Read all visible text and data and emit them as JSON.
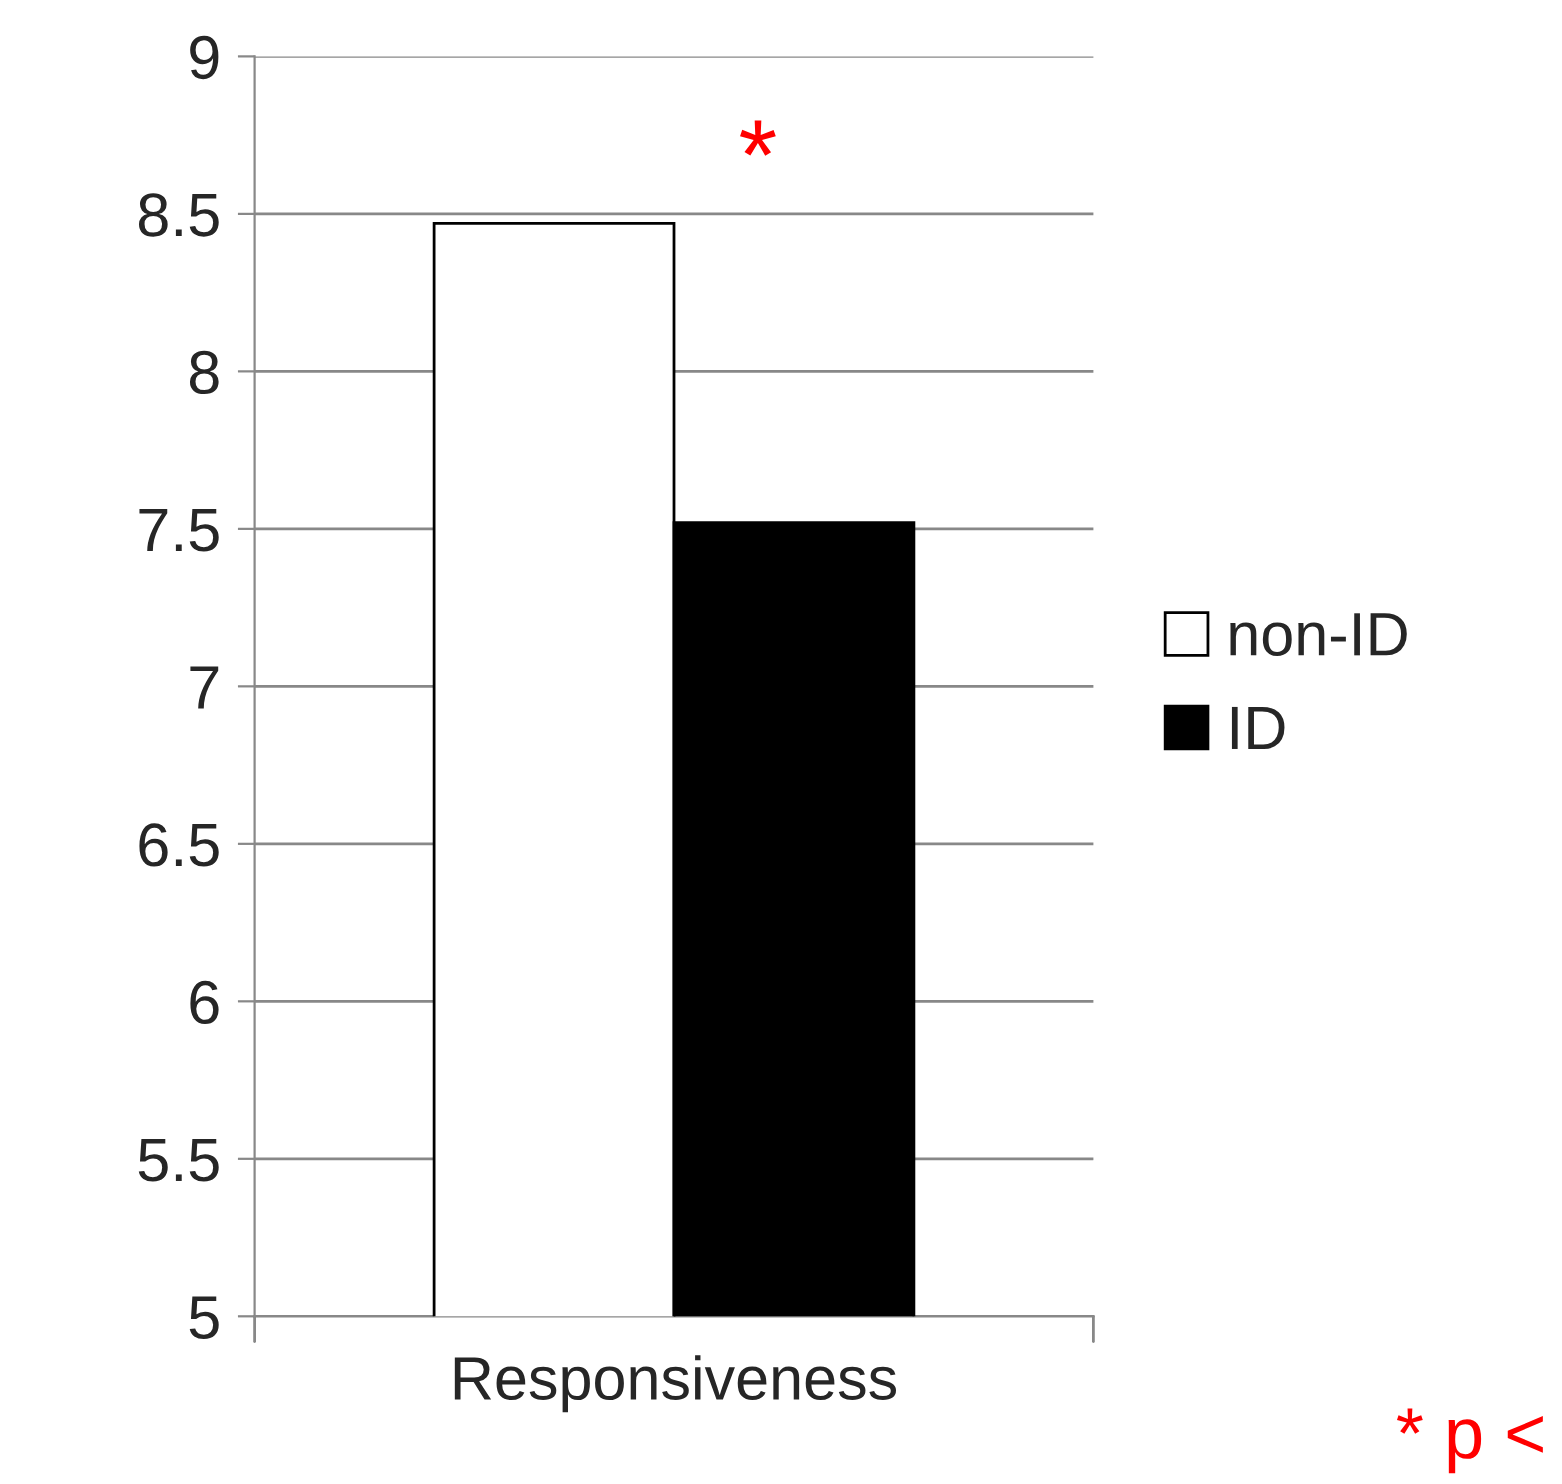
{
  "chart_data": {
    "type": "bar",
    "categories": [
      "Responsiveness"
    ],
    "series": [
      {
        "name": "non-ID",
        "color": "#ffffff",
        "values": [
          8.47
        ]
      },
      {
        "name": "ID",
        "color": "#000000",
        "values": [
          7.52
        ]
      }
    ],
    "ylim": [
      5,
      9
    ],
    "yticks": [
      5,
      5.5,
      6,
      6.5,
      7,
      7.5,
      8,
      8.5,
      9
    ],
    "grid": "y",
    "legend": "right",
    "annotations": [
      "*",
      "* p <"
    ]
  }
}
